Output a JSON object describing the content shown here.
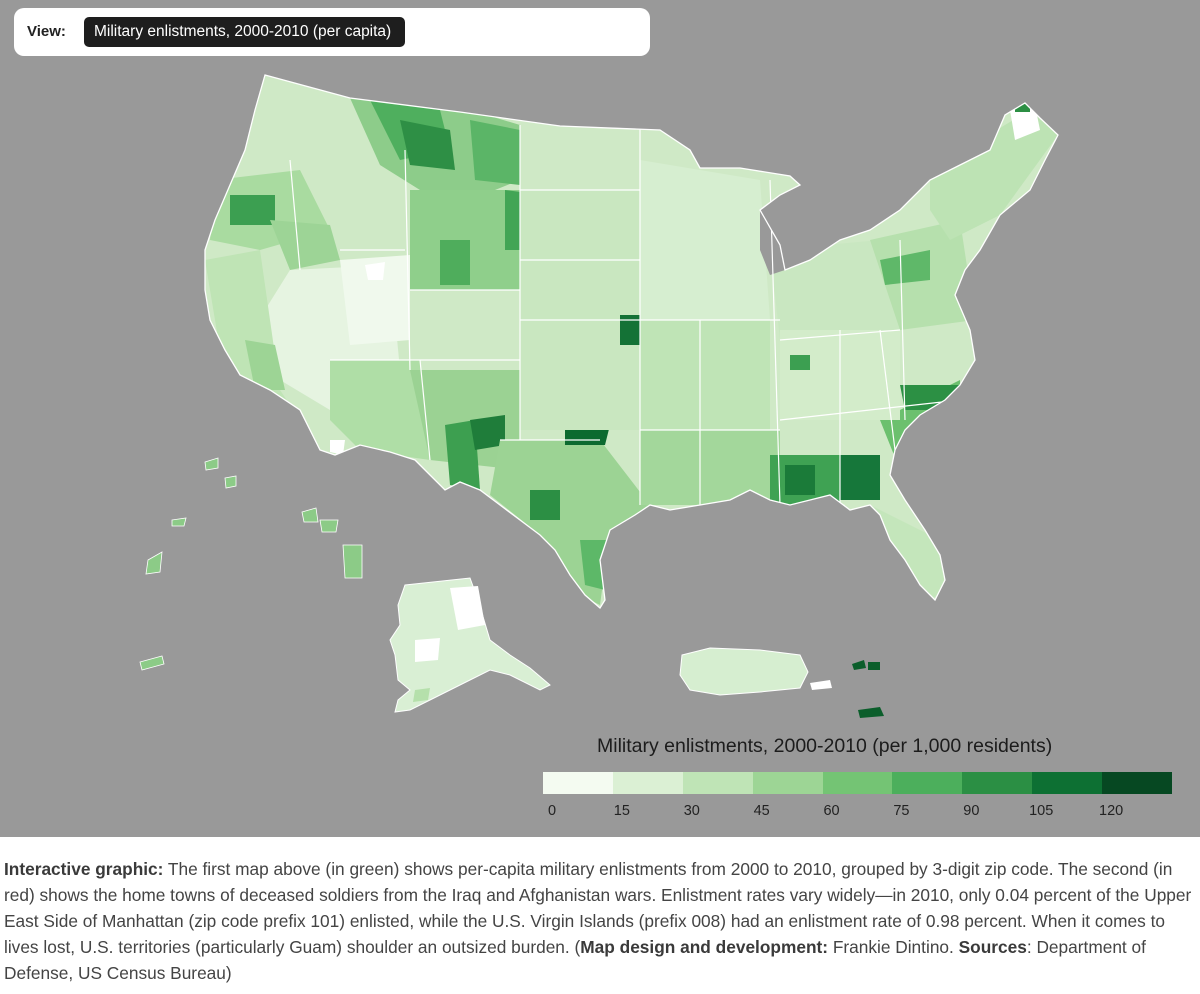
{
  "view": {
    "label": "View:",
    "selected": "Military enlistments, 2000-2010 (per capita)"
  },
  "map": {
    "background": "#999999",
    "land_base": "#cfe9c6",
    "border_color": "#ffffff",
    "regions": [
      {
        "name": "contiguous-us",
        "fill": "#cfe9c6"
      },
      {
        "name": "alaska",
        "fill": "#d9efd4"
      },
      {
        "name": "hawaii",
        "fill": "#8ccb87"
      },
      {
        "name": "puerto-rico",
        "fill": "#d6eed0"
      },
      {
        "name": "virgin-islands",
        "fill": "#0b5e2b"
      },
      {
        "name": "guam",
        "fill": "#0a5327"
      }
    ]
  },
  "legend": {
    "title": "Military enlistments, 2000-2010 (per 1,000 residents)",
    "colors": [
      "#f4fbf1",
      "#dbf0d4",
      "#bfe4b6",
      "#9dd595",
      "#74c474",
      "#4caf5c",
      "#2b8f44",
      "#0d7033",
      "#064822"
    ],
    "ticks": [
      "0",
      "15",
      "30",
      "45",
      "60",
      "75",
      "90",
      "105",
      "120"
    ]
  },
  "caption": {
    "p1_bold": "Interactive graphic:",
    "p1_text": " The first map above (in green) shows per-capita military enlistments from 2000 to 2010, grouped by 3-digit zip code. The second (in red) shows the home towns of deceased soldiers from the Iraq and Afghanistan wars. Enlistment rates vary widely—in 2010, only 0.04 percent of the Upper East Side of Manhattan (zip code prefix 101) enlisted, while the U.S. Virgin Islands (prefix 008) had an enlistment rate of 0.98 percent. When it comes to lives lost, U.S. territories (particularly Guam) shoulder an outsized burden. (",
    "credit_bold": "Map design and development:",
    "credit_text": " Frankie Dintino. ",
    "sources_bold": "Sources",
    "sources_text": ": Department of Defense, US Census Bureau)"
  }
}
